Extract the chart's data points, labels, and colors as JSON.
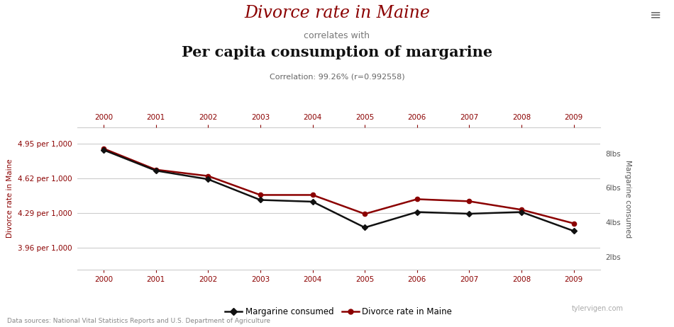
{
  "years": [
    2000,
    2001,
    2002,
    2003,
    2004,
    2005,
    2006,
    2007,
    2008,
    2009
  ],
  "divorce_rate": [
    4.9,
    4.7,
    4.64,
    4.46,
    4.46,
    4.28,
    4.42,
    4.4,
    4.32,
    4.19
  ],
  "margarine": [
    8.2,
    7.0,
    6.5,
    5.3,
    5.2,
    3.7,
    4.6,
    4.5,
    4.6,
    3.5
  ],
  "title_line1": "Divorce rate in Maine",
  "title_line2": "correlates with",
  "title_line3": "Per capita consumption of margarine",
  "correlation_text": "Correlation: 99.26% (r=0.992558)",
  "ylabel_left": "Divorce rate in Maine",
  "ylabel_right": "Margarine consumed",
  "yticks_left": [
    3.96,
    4.29,
    4.62,
    4.95
  ],
  "ytick_labels_left": [
    "3.96 per 1,000",
    "4.29 per 1,000",
    "4.62 per 1,000",
    "4.95 per 1,000"
  ],
  "yticks_right": [
    2,
    4,
    6,
    8
  ],
  "ytick_labels_right": [
    "2lbs",
    "4lbs",
    "6lbs",
    "8lbs"
  ],
  "ylim_left": [
    3.75,
    5.1
  ],
  "ylim_right": [
    1.25,
    9.5
  ],
  "divorce_color": "#8b0000",
  "margarine_color": "#111111",
  "title1_color": "#8b0000",
  "title2_color": "#777777",
  "title3_color": "#111111",
  "source_text": "Data sources: National Vital Statistics Reports and U.S. Department of Agriculture",
  "watermark": "tylervigen.com",
  "legend_margarine": "Margarine consumed",
  "legend_divorce": "Divorce rate in Maine",
  "bg_color": "#ffffff",
  "grid_color": "#cccccc",
  "axis_color": "#cccccc",
  "tick_label_color": "#8b0000"
}
